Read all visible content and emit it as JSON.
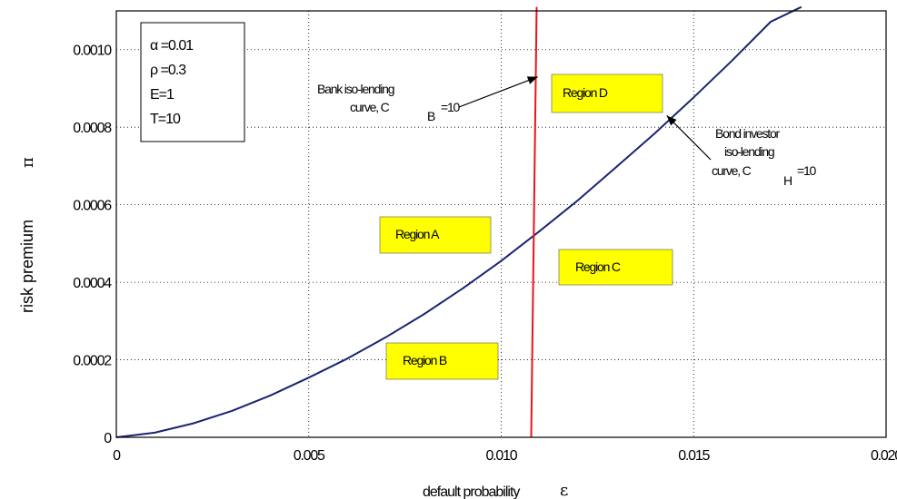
{
  "chart_data": {
    "type": "line",
    "xlabel": "default probability",
    "xlabel_symbol": "ε",
    "ylabel": "risk premium",
    "ylabel_symbol": "π",
    "xlim": [
      0,
      0.02
    ],
    "ylim": [
      0,
      0.0011
    ],
    "x_ticks": [
      0,
      0.005,
      0.01,
      0.015,
      0.02
    ],
    "x_tick_labels": [
      "0",
      "0.005",
      "0.010",
      "0.015",
      "0.020"
    ],
    "y_ticks": [
      0,
      0.0002,
      0.0004,
      0.0006,
      0.0008,
      0.001
    ],
    "y_tick_labels": [
      "0",
      "0.0002",
      "0.0004",
      "0.0006",
      "0.0008",
      "0.0010"
    ],
    "grid": true,
    "params": [
      "α =0.01",
      "ρ =0.3",
      "E=1",
      "T=10"
    ],
    "series": [
      {
        "color": "#1a2470",
        "x": [
          0,
          0.001,
          0.002,
          0.003,
          0.004,
          0.005,
          0.006,
          0.007,
          0.008,
          0.009,
          0.01,
          0.011,
          0.012,
          0.013,
          0.014,
          0.015,
          0.016,
          0.017,
          0.0178
        ],
        "y": [
          0,
          1.2e-05,
          3.6e-05,
          6.8e-05,
          0.000108,
          0.000154,
          0.000203,
          0.000258,
          0.000318,
          0.000384,
          0.000455,
          0.000532,
          0.000612,
          0.000698,
          0.000785,
          0.000877,
          0.000972,
          0.001072,
          0.00111
        ]
      },
      {
        "color": "#e8141c",
        "x": [
          0.01078,
          0.01092
        ],
        "y": [
          0,
          0.00111
        ]
      }
    ],
    "annotations": [
      {
        "lines": [
          "Bank iso-lending",
          "curve, C",
          "B",
          "=10"
        ],
        "arrow_to": [
          0.01095,
          0.00093
        ]
      },
      {
        "lines": [
          "Bond investor",
          "iso-lending",
          "curve, C",
          "H",
          "=10"
        ],
        "arrow_to": [
          0.0143,
          0.00083
        ]
      }
    ],
    "regions": [
      "Region A",
      "Region B",
      "Region C",
      "Region D"
    ],
    "region_color": "#ffff00"
  }
}
